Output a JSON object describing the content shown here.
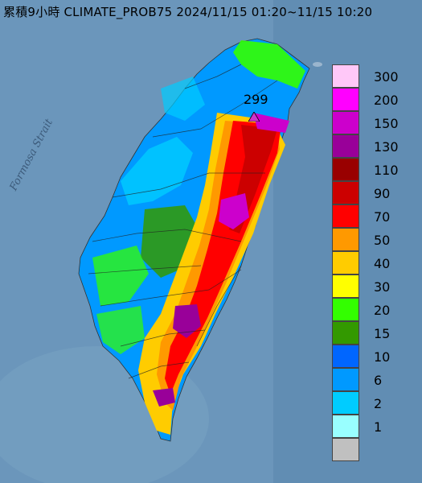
{
  "title": "累積9小時 CLIMATE_PROB75 2024/11/15 01:20~11/15 10:20",
  "strait_label": "Formosa Strait",
  "max_value_label": "299",
  "legend": [
    {
      "label": "300",
      "color": "#ffc8f8"
    },
    {
      "label": "200",
      "color": "#ff00ff"
    },
    {
      "label": "150",
      "color": "#cc00cc"
    },
    {
      "label": "130",
      "color": "#990099"
    },
    {
      "label": "110",
      "color": "#990000"
    },
    {
      "label": "90",
      "color": "#cc0000"
    },
    {
      "label": "70",
      "color": "#ff0000"
    },
    {
      "label": "50",
      "color": "#ff9900"
    },
    {
      "label": "40",
      "color": "#ffcc00"
    },
    {
      "label": "30",
      "color": "#ffff00"
    },
    {
      "label": "20",
      "color": "#33ff00"
    },
    {
      "label": "15",
      "color": "#339900"
    },
    {
      "label": "10",
      "color": "#0066ff"
    },
    {
      "label": "6",
      "color": "#0099ff"
    },
    {
      "label": "2",
      "color": "#00ccff"
    },
    {
      "label": "1",
      "color": "#99ffff"
    },
    {
      "label": "",
      "color": "#c0c0c0"
    }
  ]
}
